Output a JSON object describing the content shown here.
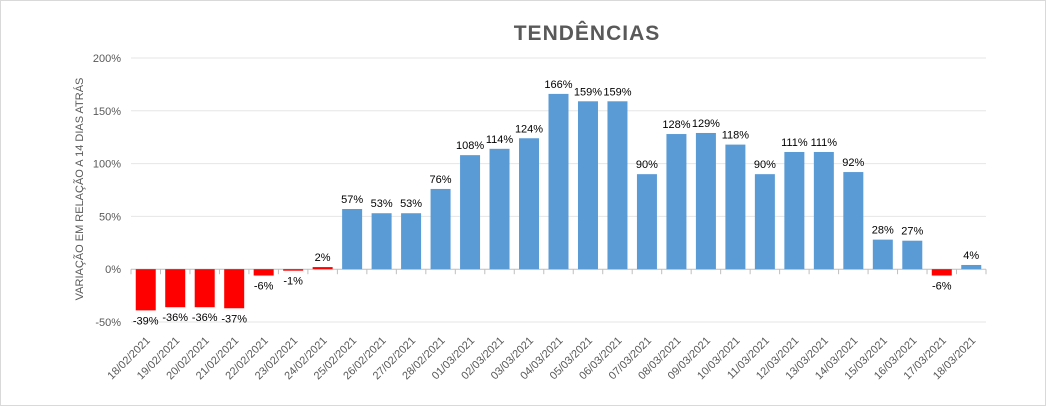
{
  "chart_data": {
    "type": "bar",
    "title": "TENDÊNCIAS",
    "xlabel": "",
    "ylabel": "VARIAÇÃO EM RELAÇÃO A 14 DIAS ATRÁS",
    "ylim": [
      -50,
      200
    ],
    "yticks": [
      -50,
      0,
      50,
      100,
      150,
      200
    ],
    "ytick_labels": [
      "-50%",
      "0%",
      "50%",
      "100%",
      "150%",
      "200%"
    ],
    "grid": true,
    "categories": [
      "18/02/2021",
      "19/02/2021",
      "20/02/2021",
      "21/02/2021",
      "22/02/2021",
      "23/02/2021",
      "24/02/2021",
      "25/02/2021",
      "26/02/2021",
      "27/02/2021",
      "28/02/2021",
      "01/03/2021",
      "02/03/2021",
      "03/03/2021",
      "04/03/2021",
      "05/03/2021",
      "06/03/2021",
      "07/03/2021",
      "08/03/2021",
      "09/03/2021",
      "10/03/2021",
      "11/03/2021",
      "12/03/2021",
      "13/03/2021",
      "14/03/2021",
      "15/03/2021",
      "16/03/2021",
      "17/03/2021",
      "18/03/2021"
    ],
    "values": [
      -39,
      -36,
      -36,
      -37,
      -6,
      -1,
      2,
      57,
      53,
      53,
      76,
      108,
      114,
      124,
      166,
      159,
      159,
      90,
      128,
      129,
      118,
      90,
      111,
      111,
      92,
      28,
      27,
      -6,
      4
    ],
    "data_labels": [
      "-39%",
      "-36%",
      "-36%",
      "-37%",
      "-6%",
      "-1%",
      "2%",
      "57%",
      "53%",
      "53%",
      "76%",
      "108%",
      "114%",
      "124%",
      "166%",
      "159%",
      "159%",
      "90%",
      "128%",
      "129%",
      "118%",
      "90%",
      "111%",
      "111%",
      "92%",
      "28%",
      "27%",
      "-6%",
      "4%"
    ],
    "bar_colors": [
      "#ff0000",
      "#ff0000",
      "#ff0000",
      "#ff0000",
      "#ff0000",
      "#ff0000",
      "#ff0000",
      "#5b9bd5",
      "#5b9bd5",
      "#5b9bd5",
      "#5b9bd5",
      "#5b9bd5",
      "#5b9bd5",
      "#5b9bd5",
      "#5b9bd5",
      "#5b9bd5",
      "#5b9bd5",
      "#5b9bd5",
      "#5b9bd5",
      "#5b9bd5",
      "#5b9bd5",
      "#5b9bd5",
      "#5b9bd5",
      "#5b9bd5",
      "#5b9bd5",
      "#5b9bd5",
      "#5b9bd5",
      "#ff0000",
      "#5b9bd5"
    ]
  }
}
